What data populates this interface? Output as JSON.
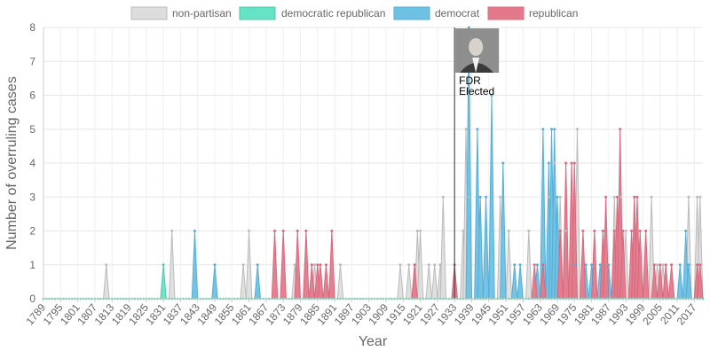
{
  "chart_data": {
    "type": "area",
    "xlabel": "Year",
    "ylabel": "Number of overruling cases",
    "ylim": [
      0,
      8
    ],
    "xlim": [
      1789,
      2020
    ],
    "yticks": [
      0,
      1,
      2,
      3,
      4,
      5,
      6,
      7,
      8
    ],
    "xticks": [
      1789,
      1795,
      1801,
      1807,
      1813,
      1819,
      1825,
      1831,
      1837,
      1843,
      1849,
      1855,
      1861,
      1867,
      1873,
      1879,
      1885,
      1891,
      1897,
      1903,
      1909,
      1915,
      1921,
      1927,
      1933,
      1939,
      1945,
      1951,
      1957,
      1963,
      1969,
      1975,
      1981,
      1987,
      1993,
      1999,
      2005,
      2011,
      2017
    ],
    "grid": true,
    "legend_position": "top",
    "legend": [
      {
        "label": "non-partisan",
        "color": "#dddddd",
        "border": "#bbbbbb"
      },
      {
        "label": "democratic republican",
        "color": "#66e3c4",
        "border": "#4fcaa9"
      },
      {
        "label": "democrat",
        "color": "#6ec1e4",
        "border": "#56aed6"
      },
      {
        "label": "republican",
        "color": "#e27a8c",
        "border": "#d9687c"
      }
    ],
    "series": [
      {
        "name": "non-partisan",
        "color": "#dddddd",
        "line": "#bbbbbb",
        "points": [
          [
            1811,
            1
          ],
          [
            1834,
            2
          ],
          [
            1859,
            1
          ],
          [
            1861,
            2
          ],
          [
            1877,
            1
          ],
          [
            1884,
            1
          ],
          [
            1893,
            1
          ],
          [
            1914,
            1
          ],
          [
            1917,
            1
          ],
          [
            1920,
            2
          ],
          [
            1921,
            2
          ],
          [
            1924,
            1
          ],
          [
            1926,
            1
          ],
          [
            1928,
            1
          ],
          [
            1929,
            3
          ],
          [
            1936,
            2
          ],
          [
            1937,
            5
          ],
          [
            1938,
            3
          ],
          [
            1949,
            3
          ],
          [
            1952,
            2
          ],
          [
            1959,
            2
          ],
          [
            1966,
            3
          ],
          [
            1968,
            4
          ],
          [
            1970,
            3
          ],
          [
            1972,
            2
          ],
          [
            1976,
            5
          ],
          [
            1985,
            2
          ],
          [
            1989,
            3
          ],
          [
            1991,
            3
          ],
          [
            1993,
            2
          ],
          [
            1996,
            3
          ],
          [
            2002,
            3
          ],
          [
            2004,
            1
          ],
          [
            2006,
            1
          ],
          [
            2015,
            3
          ],
          [
            2018,
            3
          ],
          [
            2019,
            3
          ]
        ]
      },
      {
        "name": "democratic republican",
        "color": "#66e3c4",
        "line": "#4fcaa9",
        "points": [
          [
            1831,
            1
          ]
        ]
      },
      {
        "name": "democrat",
        "color": "#6ec1e4",
        "line": "#56aed6",
        "points": [
          [
            1842,
            2
          ],
          [
            1849,
            1
          ],
          [
            1864,
            1
          ],
          [
            1938,
            8
          ],
          [
            1941,
            5
          ],
          [
            1942,
            3
          ],
          [
            1944,
            3
          ],
          [
            1946,
            6
          ],
          [
            1950,
            4
          ],
          [
            1954,
            1
          ],
          [
            1956,
            1
          ],
          [
            1962,
            1
          ],
          [
            1964,
            5
          ],
          [
            1966,
            4
          ],
          [
            1967,
            5
          ],
          [
            1968,
            5
          ],
          [
            1969,
            3
          ],
          [
            1975,
            1
          ],
          [
            1979,
            1
          ],
          [
            1981,
            1
          ],
          [
            1984,
            1
          ],
          [
            1987,
            1
          ],
          [
            2012,
            1
          ],
          [
            2014,
            2
          ],
          [
            2015,
            1
          ]
        ]
      },
      {
        "name": "republican",
        "color": "#e27a8c",
        "line": "#d9687c",
        "points": [
          [
            1870,
            2
          ],
          [
            1873,
            2
          ],
          [
            1878,
            2
          ],
          [
            1881,
            2
          ],
          [
            1883,
            1
          ],
          [
            1885,
            1
          ],
          [
            1886,
            1
          ],
          [
            1888,
            1
          ],
          [
            1890,
            2
          ],
          [
            1919,
            1
          ],
          [
            1933,
            1
          ],
          [
            1961,
            1
          ],
          [
            1964,
            1
          ],
          [
            1970,
            2
          ],
          [
            1972,
            4
          ],
          [
            1974,
            4
          ],
          [
            1975,
            4
          ],
          [
            1978,
            2
          ],
          [
            1982,
            2
          ],
          [
            1985,
            2
          ],
          [
            1986,
            3
          ],
          [
            1989,
            2
          ],
          [
            1990,
            3
          ],
          [
            1991,
            5
          ],
          [
            1992,
            2
          ],
          [
            1995,
            2
          ],
          [
            1996,
            3
          ],
          [
            1997,
            3
          ],
          [
            1998,
            2
          ],
          [
            2000,
            2
          ],
          [
            2003,
            1
          ],
          [
            2005,
            1
          ],
          [
            2007,
            1
          ],
          [
            2009,
            1
          ],
          [
            2018,
            1
          ],
          [
            2019,
            1
          ]
        ]
      }
    ],
    "annotation": {
      "text_lines": [
        "FDR",
        "Elected"
      ],
      "year": 1933,
      "image": "portrait-of-fdr"
    }
  }
}
